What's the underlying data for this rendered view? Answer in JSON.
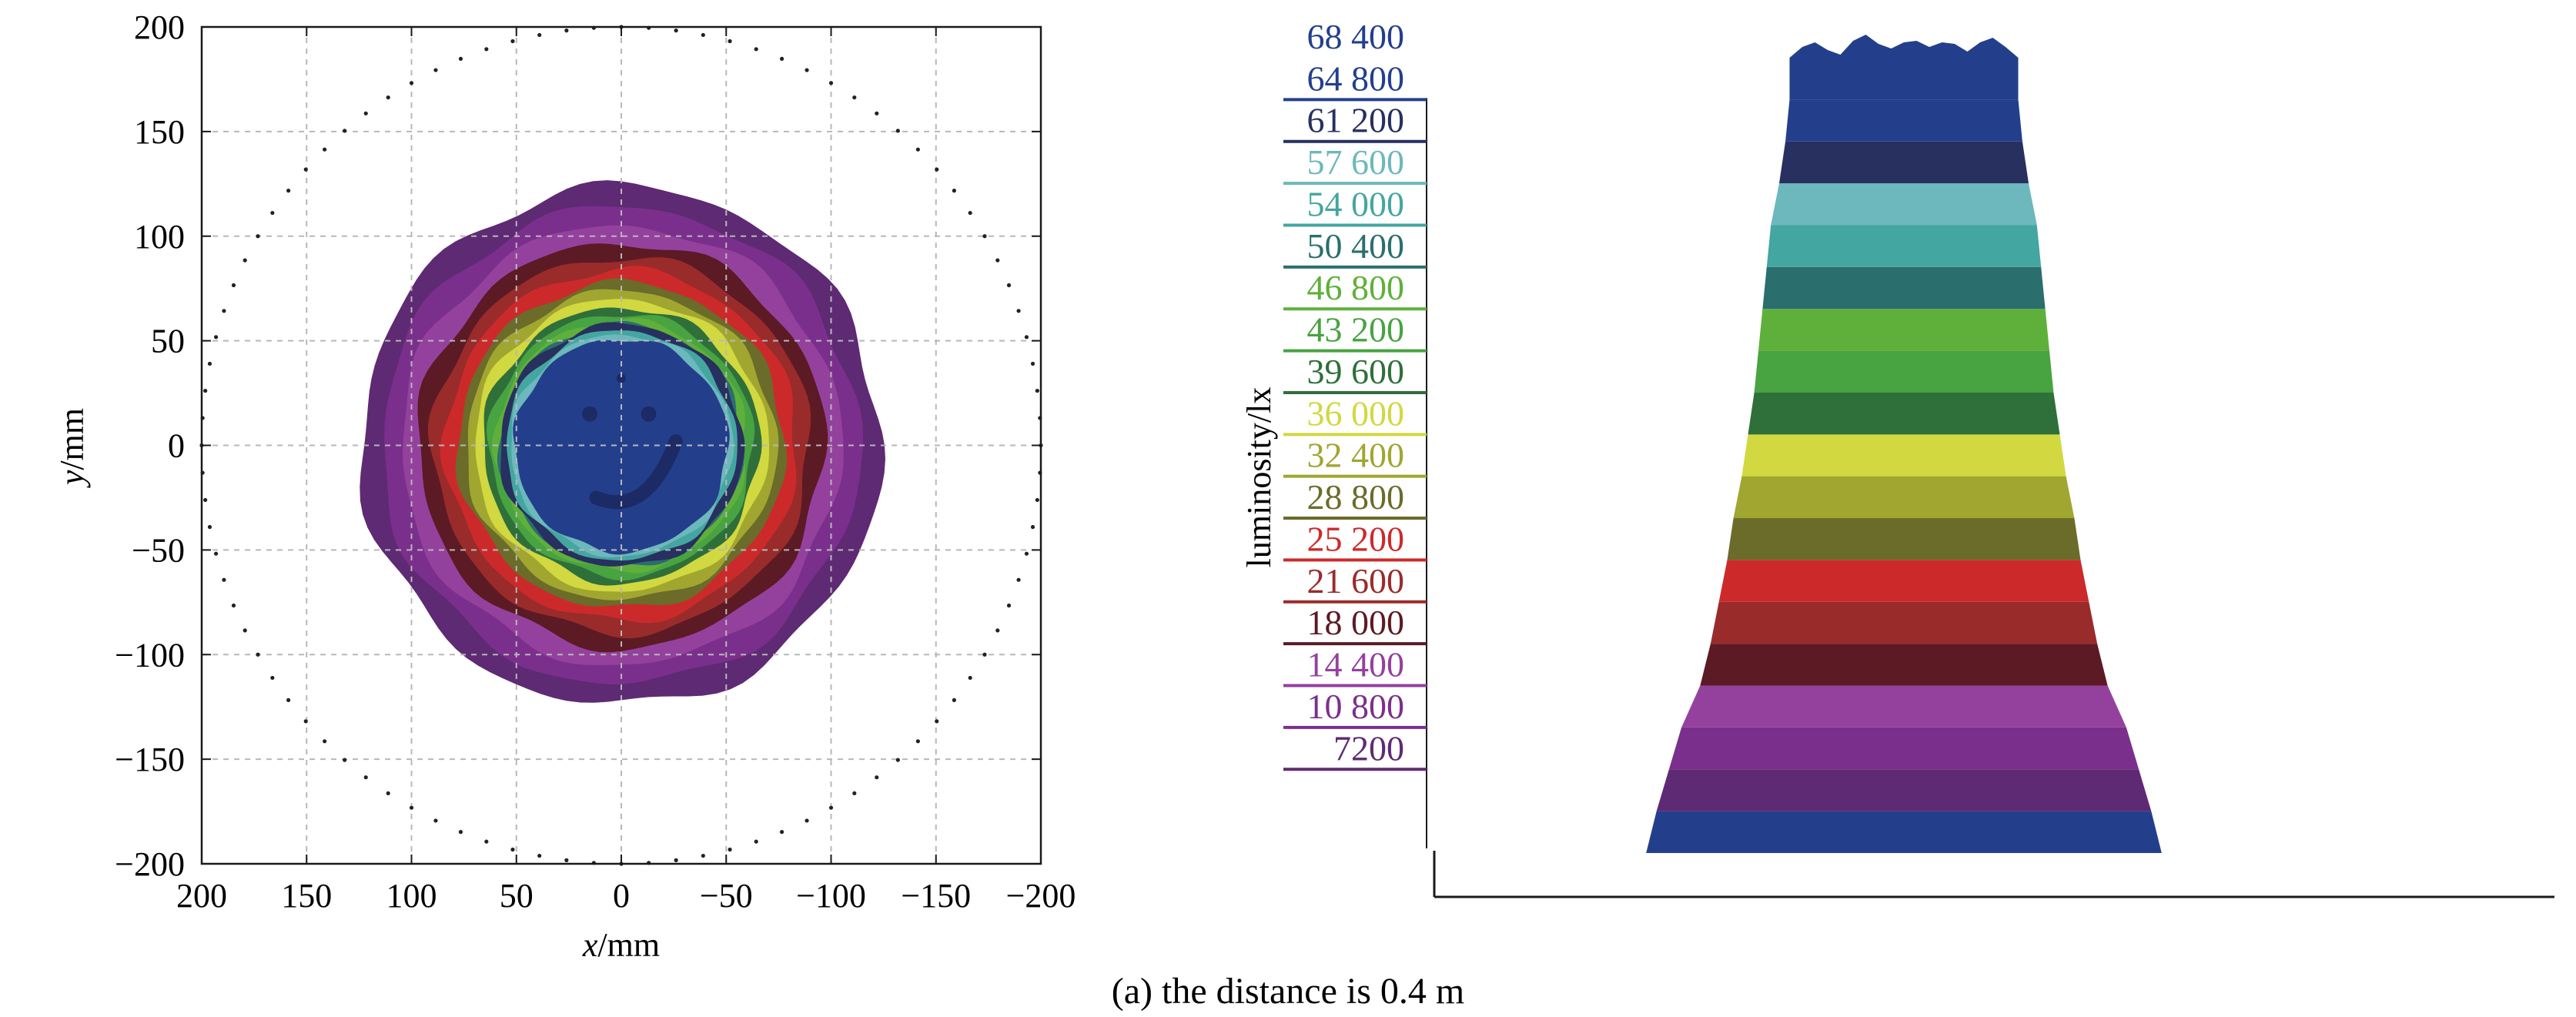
{
  "caption": "(a) the distance is 0.4 m",
  "chart_data": [
    {
      "type": "heatmap",
      "xlabel_var": "x",
      "xlabel_unit": "/mm",
      "ylabel_var": "y",
      "ylabel_unit": "/mm",
      "xlim": [
        200,
        -200
      ],
      "ylim": [
        -200,
        200
      ],
      "x_reversed": true,
      "xticks": [
        200,
        150,
        100,
        50,
        0,
        -50,
        -100,
        -150,
        -200
      ],
      "xtick_labels": [
        "200",
        "150",
        "100",
        "50",
        "0",
        "−50",
        "−100",
        "−150",
        "−200"
      ],
      "yticks": [
        200,
        150,
        100,
        50,
        0,
        -50,
        -100,
        -150,
        -200
      ],
      "ytick_labels": [
        "200",
        "150",
        "100",
        "50",
        "0",
        "−50",
        "−100",
        "−150",
        "−200"
      ],
      "grid": true,
      "boundary_circle_radius": 200,
      "center_level": 68400,
      "contours": [
        {
          "level": 7200,
          "radius": 124,
          "color": "#5e2a73"
        },
        {
          "level": 10800,
          "radius": 114,
          "color": "#7b2f8c"
        },
        {
          "level": 14400,
          "radius": 105,
          "color": "#94419e"
        },
        {
          "level": 18000,
          "radius": 97,
          "color": "#5c1a24"
        },
        {
          "level": 21600,
          "radius": 90,
          "color": "#9a2b2b"
        },
        {
          "level": 25200,
          "radius": 84,
          "color": "#cc2a2a"
        },
        {
          "level": 28800,
          "radius": 78,
          "color": "#6b6b2a"
        },
        {
          "level": 32400,
          "radius": 74,
          "color": "#a1a630"
        },
        {
          "level": 36000,
          "radius": 70,
          "color": "#d2d840"
        },
        {
          "level": 39600,
          "radius": 66,
          "color": "#2f6f3a"
        },
        {
          "level": 43200,
          "radius": 63,
          "color": "#48a341"
        },
        {
          "level": 46800,
          "radius": 60,
          "color": "#5fb03a"
        },
        {
          "level": 50400,
          "radius": 58,
          "color": "#2b6e6e"
        },
        {
          "level": 54000,
          "radius": 55,
          "color": "#44a6a0"
        },
        {
          "level": 57600,
          "radius": 53,
          "color": "#6cb8bd"
        },
        {
          "level": 61200,
          "radius": 58,
          "color": "#27305e"
        },
        {
          "level": 64800,
          "radius": 51,
          "color": "#233f8c"
        }
      ]
    },
    {
      "type": "area",
      "ylabel": "luminosity/lx",
      "colorbar_levels": [
        68400,
        64800,
        61200,
        57600,
        54000,
        50400,
        46800,
        43200,
        39600,
        36000,
        32400,
        28800,
        25200,
        21600,
        18000,
        14400,
        10800,
        7200
      ],
      "colorbar_labels": [
        "68 400",
        "64 800",
        "61 200",
        "57 600",
        "54 000",
        "50 400",
        "46 800",
        "43 200",
        "39 600",
        "36 000",
        "32 400",
        "28 800",
        "25 200",
        "21 600",
        "18 000",
        "14 400",
        "10 800",
        "7200"
      ],
      "colors": [
        "#233f8c",
        "#233f8c",
        "#27305e",
        "#6cb8bd",
        "#44a6a0",
        "#2b6e6e",
        "#5fb03a",
        "#48a341",
        "#2f6f3a",
        "#d2d840",
        "#a1a630",
        "#6b6b2a",
        "#cc2a2a",
        "#9a2b2b",
        "#5c1a24",
        "#94419e",
        "#7b2f8c",
        "#5e2a73"
      ],
      "profile": {
        "levels": [
          0,
          3600,
          7200,
          10800,
          14400,
          18000,
          21600,
          25200,
          28800,
          32400,
          36000,
          39600,
          43200,
          46800,
          50400,
          54000,
          57600,
          61200,
          64800
        ],
        "half_width_mm": [
          124,
          119,
          113,
          107,
          98,
          93,
          89,
          85,
          82,
          78,
          75,
          72,
          70,
          68,
          66,
          64,
          60,
          57,
          55
        ]
      },
      "top_level": 68400
    }
  ]
}
